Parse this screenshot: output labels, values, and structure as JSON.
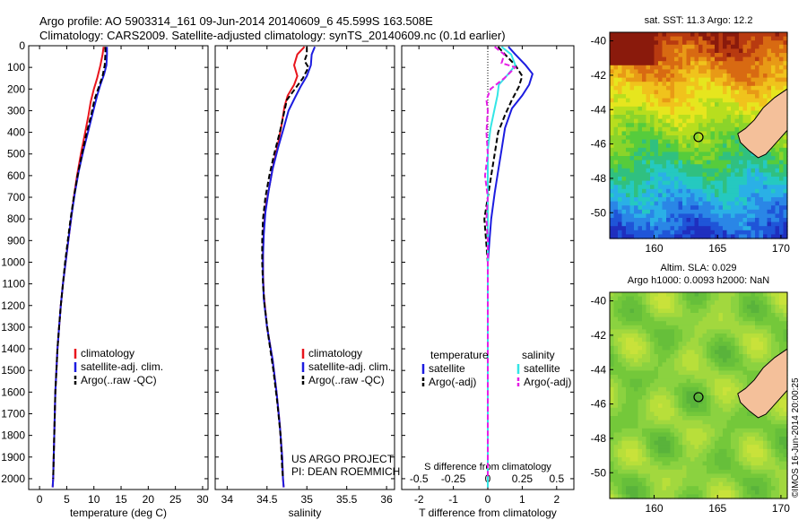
{
  "header": {
    "line1": "Argo profile: AO 5903314_161 09-Jun-2014 20140609_6 45.599S 163.508E",
    "line2": "Climatology: CARS2009. Satellite-adjusted climatology: synTS_20140609.nc (0.1d earlier)"
  },
  "colors": {
    "climatology": "#e8141c",
    "satellite": "#1c1ce0",
    "argo": "#000000",
    "sat_salinity": "#33e6e6",
    "argo_salinity": "#e61ee6"
  },
  "depth_axis": {
    "ticks": [
      "0",
      "100",
      "200",
      "300",
      "400",
      "500",
      "600",
      "700",
      "800",
      "900",
      "1000",
      "1100",
      "1200",
      "1300",
      "1400",
      "1500",
      "1600",
      "1700",
      "1800",
      "1900",
      "2000"
    ]
  },
  "chart_data": [
    {
      "type": "line",
      "name": "temperature_profile",
      "xlabel": "temperature (deg C)",
      "ylabel": "",
      "xlim": [
        -2,
        31
      ],
      "ylim": [
        2050,
        0
      ],
      "xticks": [
        "0",
        "5",
        "10",
        "15",
        "20",
        "25",
        "30"
      ],
      "legend": {
        "position": "lower-center",
        "entries": [
          "climatology",
          "satellite-adj. clim.",
          "Argo(..raw -QC)"
        ]
      },
      "series": [
        {
          "name": "climatology",
          "color": "climatology",
          "dashed": false,
          "points": [
            [
              11.8,
              5
            ],
            [
              11.6,
              40
            ],
            [
              11.2,
              90
            ],
            [
              10.6,
              150
            ],
            [
              10.0,
              200
            ],
            [
              9.4,
              260
            ],
            [
              9.0,
              320
            ],
            [
              8.4,
              400
            ],
            [
              7.6,
              500
            ],
            [
              6.9,
              600
            ],
            [
              6.3,
              700
            ],
            [
              5.8,
              800
            ],
            [
              5.3,
              900
            ],
            [
              4.8,
              1000
            ],
            [
              4.3,
              1100
            ],
            [
              3.9,
              1200
            ],
            [
              3.6,
              1300
            ],
            [
              3.3,
              1400
            ],
            [
              3.1,
              1500
            ],
            [
              2.9,
              1600
            ],
            [
              2.8,
              1700
            ],
            [
              2.7,
              1800
            ],
            [
              2.6,
              1900
            ],
            [
              2.5,
              2000
            ],
            [
              2.4,
              2040
            ]
          ]
        },
        {
          "name": "satellite-adj. clim.",
          "color": "satellite",
          "dashed": false,
          "points": [
            [
              12.4,
              5
            ],
            [
              12.4,
              40
            ],
            [
              12.3,
              90
            ],
            [
              11.9,
              130
            ],
            [
              11.2,
              180
            ],
            [
              10.6,
              230
            ],
            [
              10.0,
              290
            ],
            [
              9.1,
              380
            ],
            [
              8.1,
              480
            ],
            [
              7.2,
              580
            ],
            [
              6.5,
              680
            ],
            [
              5.9,
              780
            ],
            [
              5.3,
              900
            ],
            [
              4.8,
              1000
            ],
            [
              4.3,
              1100
            ],
            [
              3.9,
              1200
            ],
            [
              3.6,
              1300
            ],
            [
              3.3,
              1400
            ],
            [
              3.1,
              1500
            ],
            [
              2.9,
              1600
            ],
            [
              2.8,
              1700
            ],
            [
              2.7,
              1800
            ],
            [
              2.6,
              1900
            ],
            [
              2.5,
              2000
            ],
            [
              2.4,
              2040
            ]
          ]
        },
        {
          "name": "Argo(..raw -QC)",
          "color": "argo",
          "dashed": true,
          "points": [
            [
              12.1,
              5
            ],
            [
              12.1,
              40
            ],
            [
              12.0,
              90
            ],
            [
              11.6,
              140
            ],
            [
              10.9,
              190
            ],
            [
              10.1,
              250
            ],
            [
              9.5,
              320
            ],
            [
              8.7,
              400
            ],
            [
              7.8,
              500
            ],
            [
              7.0,
              600
            ],
            [
              6.3,
              700
            ],
            [
              5.7,
              800
            ],
            [
              5.2,
              900
            ],
            [
              4.7,
              1000
            ],
            [
              4.3,
              1100
            ],
            [
              3.9,
              1200
            ],
            [
              3.6,
              1300
            ],
            [
              3.3,
              1400
            ],
            [
              3.1,
              1500
            ],
            [
              2.9,
              1600
            ],
            [
              2.8,
              1700
            ],
            [
              2.7,
              1800
            ],
            [
              2.6,
              1900
            ],
            [
              2.5,
              2000
            ]
          ]
        }
      ]
    },
    {
      "type": "line",
      "name": "salinity_profile",
      "xlabel": "salinity",
      "ylabel": "",
      "xlim": [
        33.85,
        36.1
      ],
      "ylim": [
        2050,
        0
      ],
      "xticks": [
        "34",
        "34.5",
        "35",
        "35.5",
        "36"
      ],
      "legend": {
        "position": "lower-center",
        "entries": [
          "climatology",
          "satellite-adj. clim.",
          "Argo(..raw -QC)"
        ]
      },
      "annotation": [
        "US ARGO PROJECT",
        "PI: DEAN ROEMMICH"
      ],
      "series": [
        {
          "name": "climatology",
          "color": "climatology",
          "dashed": false,
          "points": [
            [
              34.97,
              5
            ],
            [
              34.88,
              40
            ],
            [
              34.84,
              90
            ],
            [
              34.88,
              140
            ],
            [
              34.84,
              180
            ],
            [
              34.76,
              230
            ],
            [
              34.72,
              280
            ],
            [
              34.69,
              350
            ],
            [
              34.64,
              450
            ],
            [
              34.58,
              550
            ],
            [
              34.53,
              650
            ],
            [
              34.48,
              750
            ],
            [
              34.46,
              850
            ],
            [
              34.45,
              950
            ],
            [
              34.45,
              1050
            ],
            [
              34.46,
              1150
            ],
            [
              34.5,
              1300
            ],
            [
              34.57,
              1450
            ],
            [
              34.62,
              1600
            ],
            [
              34.66,
              1750
            ],
            [
              34.69,
              1900
            ],
            [
              34.7,
              2000
            ],
            [
              34.71,
              2040
            ]
          ]
        },
        {
          "name": "satellite-adj. clim.",
          "color": "satellite",
          "dashed": false,
          "points": [
            [
              35.1,
              5
            ],
            [
              35.06,
              40
            ],
            [
              35.05,
              90
            ],
            [
              35.0,
              140
            ],
            [
              34.92,
              190
            ],
            [
              34.85,
              240
            ],
            [
              34.77,
              300
            ],
            [
              34.71,
              380
            ],
            [
              34.64,
              470
            ],
            [
              34.57,
              570
            ],
            [
              34.52,
              670
            ],
            [
              34.48,
              770
            ],
            [
              34.46,
              870
            ],
            [
              34.45,
              970
            ],
            [
              34.45,
              1070
            ],
            [
              34.46,
              1170
            ],
            [
              34.5,
              1300
            ],
            [
              34.57,
              1450
            ],
            [
              34.62,
              1600
            ],
            [
              34.66,
              1750
            ],
            [
              34.69,
              1900
            ],
            [
              34.7,
              2000
            ],
            [
              34.71,
              2040
            ]
          ]
        },
        {
          "name": "Argo(..raw -QC)",
          "color": "argo",
          "dashed": true,
          "points": [
            [
              35.0,
              5
            ],
            [
              35.0,
              40
            ],
            [
              34.97,
              70
            ],
            [
              35.02,
              100
            ],
            [
              34.95,
              150
            ],
            [
              34.85,
              200
            ],
            [
              34.75,
              250
            ],
            [
              34.72,
              300
            ],
            [
              34.66,
              400
            ],
            [
              34.59,
              500
            ],
            [
              34.53,
              600
            ],
            [
              34.48,
              700
            ],
            [
              34.45,
              800
            ],
            [
              34.44,
              900
            ],
            [
              34.44,
              1000
            ],
            [
              34.45,
              1100
            ],
            [
              34.47,
              1200
            ],
            [
              34.52,
              1350
            ],
            [
              34.58,
              1500
            ],
            [
              34.63,
              1650
            ],
            [
              34.67,
              1800
            ],
            [
              34.69,
              1950
            ],
            [
              34.7,
              2000
            ]
          ]
        }
      ]
    },
    {
      "type": "line",
      "name": "difference_profile",
      "xlabel": "T difference from climatology",
      "top_label": "S difference from climatology",
      "xlim": [
        -2.5,
        2.5
      ],
      "ylim": [
        2050,
        0
      ],
      "xticks": [
        "-2",
        "-1",
        "0",
        "1",
        "2"
      ],
      "top_ticks": [
        "-0.5",
        "-0.25",
        "0",
        "0.25",
        "0.5"
      ],
      "top_xlim": [
        -0.625,
        0.625
      ],
      "legend": {
        "position": "lower",
        "left_heading": "temperature",
        "right_heading": "salinity",
        "entries": [
          "satellite",
          "Argo(-adj)",
          "satellite",
          "Argo(-adj)"
        ]
      },
      "series": [
        {
          "name": "temperature satellite",
          "color": "satellite",
          "dashed": false,
          "axis": "T",
          "points": [
            [
              0.6,
              5
            ],
            [
              0.8,
              40
            ],
            [
              1.1,
              90
            ],
            [
              1.3,
              130
            ],
            [
              1.2,
              180
            ],
            [
              1.0,
              230
            ],
            [
              0.7,
              290
            ],
            [
              0.5,
              380
            ],
            [
              0.4,
              480
            ],
            [
              0.3,
              580
            ],
            [
              0.2,
              680
            ],
            [
              0.1,
              800
            ],
            [
              0.05,
              900
            ],
            [
              0.0,
              1000
            ],
            [
              0.0,
              2040
            ]
          ]
        },
        {
          "name": "temperature Argo(-adj)",
          "color": "argo",
          "dashed": true,
          "axis": "T",
          "points": [
            [
              0.3,
              5
            ],
            [
              0.5,
              40
            ],
            [
              0.8,
              90
            ],
            [
              1.0,
              140
            ],
            [
              0.9,
              190
            ],
            [
              0.7,
              250
            ],
            [
              0.5,
              320
            ],
            [
              0.3,
              400
            ],
            [
              0.2,
              500
            ],
            [
              0.1,
              600
            ],
            [
              0.0,
              700
            ],
            [
              -0.1,
              800
            ],
            [
              -0.05,
              900
            ],
            [
              0.0,
              1000
            ],
            [
              0.0,
              2000
            ]
          ]
        },
        {
          "name": "salinity satellite",
          "color": "sat_salinity",
          "dashed": false,
          "axis": "S",
          "points": [
            [
              0.1,
              5
            ],
            [
              0.17,
              40
            ],
            [
              0.2,
              90
            ],
            [
              0.15,
              130
            ],
            [
              0.08,
              180
            ],
            [
              0.07,
              230
            ],
            [
              0.05,
              290
            ],
            [
              0.02,
              380
            ],
            [
              0.0,
              480
            ],
            [
              0.0,
              580
            ],
            [
              0.0,
              2040
            ]
          ]
        },
        {
          "name": "salinity Argo(-adj)",
          "color": "argo_salinity",
          "dashed": true,
          "axis": "S",
          "points": [
            [
              0.05,
              5
            ],
            [
              0.12,
              40
            ],
            [
              0.1,
              80
            ],
            [
              0.2,
              100
            ],
            [
              0.12,
              150
            ],
            [
              0.02,
              200
            ],
            [
              -0.01,
              250
            ],
            [
              0.0,
              300
            ],
            [
              -0.01,
              400
            ],
            [
              0.0,
              500
            ],
            [
              -0.02,
              600
            ],
            [
              0.0,
              700
            ],
            [
              -0.01,
              800
            ],
            [
              0.0,
              900
            ],
            [
              0.0,
              1000
            ],
            [
              0.0,
              2000
            ]
          ]
        }
      ]
    },
    {
      "type": "heatmap",
      "name": "sst_map",
      "title": "sat. SST: 11.3 Argo: 12.2",
      "xlim": [
        156.5,
        170.5
      ],
      "ylim": [
        -51.5,
        -39.5
      ],
      "xticks": [
        "160",
        "165",
        "170"
      ],
      "yticks": [
        "-40",
        "-42",
        "-44",
        "-46",
        "-48",
        "-50"
      ],
      "argo_position": [
        163.5,
        -45.6
      ]
    },
    {
      "type": "heatmap",
      "name": "sla_map",
      "title": "Altim. SLA: 0.029",
      "subtitle": "Argo h1000: 0.0093 h2000: NaN",
      "xlim": [
        156.5,
        170.5
      ],
      "ylim": [
        -51.5,
        -39.5
      ],
      "xticks": [
        "160",
        "165",
        "170"
      ],
      "yticks": [
        "-40",
        "-42",
        "-44",
        "-46",
        "-48",
        "-50"
      ],
      "argo_position": [
        163.5,
        -45.6
      ]
    }
  ],
  "footer": {
    "stamp": "©IMOS 16-Jun-2014 20:00:25"
  }
}
